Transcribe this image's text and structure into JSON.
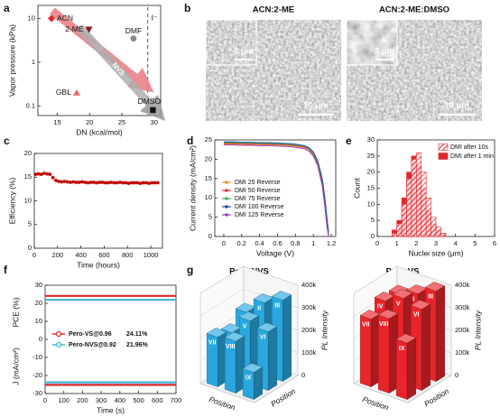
{
  "chart_data": [
    {
      "panel": "a",
      "type": "scatter",
      "xlabel": "DN (kcal/mol)",
      "ylabel": "Vapor pressure (kPa)",
      "categories": [
        "ACN",
        "2-ME",
        "GBL",
        "DMF",
        "DMSO"
      ],
      "x": [
        14.1,
        19.9,
        18.0,
        26.8,
        29.8
      ],
      "values": [
        10,
        5.6,
        0.2,
        3.5,
        0.08
      ],
      "colors": [
        "#e0282e",
        "#8b1a1a",
        "#ef6b6b",
        "#888888",
        "#111111"
      ],
      "markers": [
        "diamond",
        "tri-down",
        "tri-up",
        "circle",
        "square"
      ],
      "xlim": [
        12,
        31
      ],
      "xticks": [
        15,
        20,
        25,
        30
      ],
      "ylim": [
        0.06,
        20
      ],
      "yticks": [
        0.1,
        1,
        10
      ],
      "ylog": true,
      "vline": 29,
      "annotations": [
        "VS",
        "NVS",
        "I⁻"
      ]
    },
    {
      "panel": "b",
      "type": "image",
      "images": [
        {
          "title": "ACN:2-ME",
          "inset_scale": "2 μm",
          "scale": "10 μm"
        },
        {
          "title": "ACN:2-ME:DMSO",
          "inset_scale": "2 μm",
          "scale": "10 μm"
        }
      ]
    },
    {
      "panel": "c",
      "type": "scatter",
      "xlabel": "Time (hours)",
      "ylabel": "Efficiency (%)",
      "color": "#c00000",
      "x": [
        10,
        35,
        60,
        85,
        110,
        135,
        160,
        185,
        210,
        235,
        260,
        285,
        310,
        335,
        360,
        385,
        410,
        435,
        460,
        485,
        510,
        535,
        560,
        585,
        610,
        635,
        660,
        685,
        710,
        735,
        760,
        785,
        810,
        835,
        860,
        885,
        910,
        935,
        960,
        985,
        1010,
        1035,
        1060
      ],
      "values": [
        15.6,
        15.7,
        15.6,
        15.8,
        15.7,
        15.6,
        14.9,
        14.3,
        14.1,
        14.0,
        14.1,
        14.0,
        13.9,
        14.0,
        13.9,
        13.9,
        14.0,
        13.9,
        13.8,
        13.9,
        13.9,
        13.8,
        13.9,
        13.9,
        13.8,
        13.8,
        13.9,
        13.8,
        13.8,
        13.9,
        13.8,
        13.8,
        13.7,
        13.8,
        13.8,
        13.8,
        13.7,
        13.8,
        13.8,
        13.7,
        13.8,
        13.8,
        13.8
      ],
      "xlim": [
        0,
        1100
      ],
      "xticks": [
        0,
        200,
        400,
        600,
        800,
        1000
      ],
      "ylim": [
        0,
        20
      ],
      "yticks": [
        0,
        5,
        10,
        15,
        20
      ]
    },
    {
      "panel": "d",
      "type": "line",
      "xlabel": "Voltage (V)",
      "ylabel": "Current density (mA/cm²)",
      "x": [
        0,
        0.1,
        0.2,
        0.3,
        0.4,
        0.5,
        0.6,
        0.7,
        0.8,
        0.9,
        0.95,
        1.0,
        1.05,
        1.1,
        1.13,
        1.15,
        1.17
      ],
      "series": [
        {
          "name": "DMI 25 Reverse",
          "color": "#f28c28",
          "values": [
            23.9,
            23.9,
            23.9,
            23.8,
            23.8,
            23.7,
            23.7,
            23.6,
            23.4,
            23.0,
            22.5,
            21.2,
            18.6,
            13.5,
            8.0,
            3.5,
            0
          ]
        },
        {
          "name": "DMI 50 Reverse",
          "color": "#e03030",
          "values": [
            24.1,
            24.1,
            24.0,
            24.0,
            23.9,
            23.9,
            23.8,
            23.7,
            23.5,
            23.1,
            22.6,
            21.4,
            18.9,
            14.0,
            8.6,
            4.0,
            0.3
          ]
        },
        {
          "name": "DMI 75 Reverse",
          "color": "#4caf50",
          "values": [
            24.3,
            24.3,
            24.2,
            24.2,
            24.1,
            24.1,
            24.0,
            23.9,
            23.7,
            23.3,
            22.8,
            21.6,
            19.2,
            14.5,
            9.2,
            4.6,
            0.8
          ]
        },
        {
          "name": "DMI 100 Reverse",
          "color": "#1f4e9a",
          "values": [
            24.5,
            24.5,
            24.4,
            24.4,
            24.3,
            24.3,
            24.2,
            24.1,
            23.9,
            23.5,
            23.0,
            21.9,
            19.5,
            15.0,
            9.8,
            5.2,
            1.2
          ]
        },
        {
          "name": "DMI 125 Reverse",
          "color": "#9b3fbf",
          "values": [
            23.7,
            23.7,
            23.6,
            23.6,
            23.5,
            23.5,
            23.4,
            23.3,
            23.1,
            22.7,
            22.1,
            20.8,
            18.2,
            13.0,
            7.4,
            3.0,
            0
          ]
        }
      ],
      "xlim": [
        -0.1,
        1.25
      ],
      "xticks": [
        0,
        0.2,
        0.4,
        0.6,
        0.8,
        1,
        1.2
      ],
      "ylim": [
        0,
        25
      ],
      "yticks": [
        0,
        5,
        10,
        15,
        20,
        25
      ]
    },
    {
      "panel": "e",
      "type": "histogram",
      "xlabel": "Nuclei size (μm)",
      "ylabel": "Count",
      "bins": [
        0.75,
        1.0,
        1.25,
        1.5,
        1.75,
        2.0,
        2.25,
        2.5,
        2.75,
        3.0,
        3.25,
        3.5
      ],
      "series": [
        {
          "name": "DMI after 10s",
          "color": "#e0282e",
          "hatch": true,
          "values": [
            1,
            4,
            10,
            18,
            24,
            26,
            20,
            12,
            6,
            3,
            1
          ]
        },
        {
          "name": "DMI after 1 min",
          "color": "#e0282e",
          "values": [
            2,
            5,
            12,
            20,
            25,
            22,
            15,
            8,
            4,
            2,
            1
          ]
        }
      ],
      "xlim": [
        0,
        6
      ],
      "xticks": [
        0,
        1,
        2,
        3,
        4,
        5,
        6
      ],
      "ylim": [
        0,
        30
      ],
      "yticks": [
        0,
        5,
        10,
        15,
        20,
        25,
        30
      ]
    },
    {
      "panel": "f",
      "type": "line",
      "xlabel": "Time (s)",
      "ylabel": "PCE (%)",
      "ylabel2": "J (mA/cm²)",
      "x": [
        0,
        100,
        200,
        300,
        400,
        500,
        600,
        700
      ],
      "series": [
        {
          "name": "Pero-VS@0.96",
          "stable_pce": 24.11,
          "stable_pce_label": "24.11%",
          "color": "#d62728",
          "values": [
            24.1,
            24.1,
            24.1,
            24.1,
            24.1,
            24.1,
            24.1,
            24.1
          ],
          "j_values": [
            -25.2,
            -25.2,
            -25.2,
            -25.2,
            -25.2,
            -25.2,
            -25.2,
            -25.2
          ]
        },
        {
          "name": "Pero-NVS@0.92",
          "stable_pce": 21.96,
          "stable_pce_label": "21.96%",
          "color": "#3fb6d9",
          "values": [
            21.9,
            21.9,
            21.9,
            21.9,
            21.9,
            21.9,
            21.9,
            21.9
          ],
          "j_values": [
            -23.8,
            -23.8,
            -23.8,
            -23.8,
            -23.8,
            -23.8,
            -23.8,
            -23.8
          ]
        }
      ],
      "xlim": [
        0,
        700
      ],
      "xticks": [
        0,
        100,
        200,
        300,
        400,
        500,
        600,
        700
      ],
      "ylim": [
        -30,
        30
      ],
      "yticks": [
        -30,
        -20,
        -10,
        0,
        10,
        20,
        30
      ]
    },
    {
      "panel": "g",
      "type": "bar3d",
      "title": "Pero-NVS",
      "color": "#29a8e0",
      "xlabel": "Position",
      "ylabel": "Position",
      "zlabel": "PL Intensity",
      "categories": [
        "I",
        "II",
        "III",
        "IV",
        "V",
        "VI",
        "VII",
        "VIII",
        "IX"
      ],
      "values": [
        250000,
        320000,
        360000,
        200000,
        280000,
        260000,
        220000,
        230000,
        120000
      ],
      "zlim": [
        0,
        400000
      ],
      "zticks": [
        0,
        {
          "value": 100000,
          "label": "100k"
        },
        {
          "value": 200000,
          "label": "200k"
        },
        {
          "value": 300000,
          "label": "300k"
        },
        {
          "value": 400000,
          "label": "400k"
        }
      ]
    },
    {
      "type": "bar3d",
      "title": "Pero-VS",
      "color": "#e8252a",
      "xlabel": "Position",
      "ylabel": "Position",
      "zlabel": "PL Intensity",
      "categories": [
        "I",
        "II",
        "III",
        "IV",
        "V",
        "VI",
        "VII",
        "VIII",
        "IX"
      ],
      "values": [
        330000,
        360000,
        400000,
        340000,
        380000,
        360000,
        300000,
        330000,
        250000
      ],
      "zlim": [
        0,
        400000
      ],
      "zticks": [
        0,
        {
          "value": 100000,
          "label": "100k"
        },
        {
          "value": 200000,
          "label": "200k"
        },
        {
          "value": 300000,
          "label": "300k"
        },
        {
          "value": 400000,
          "label": "400k"
        }
      ]
    }
  ]
}
